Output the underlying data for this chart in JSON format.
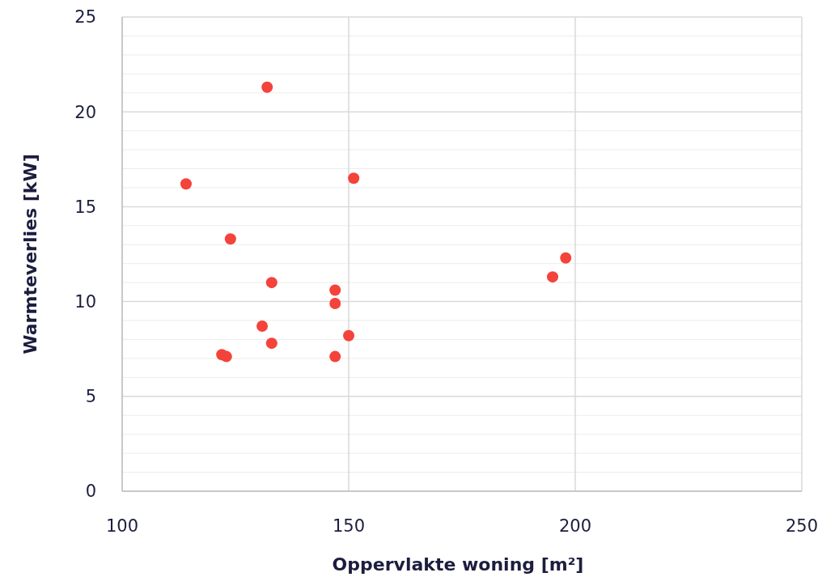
{
  "chart_data": {
    "type": "scatter",
    "xlabel": "Oppervlakte woning [m²]",
    "ylabel": "Warmteverlies [kW]",
    "x": [
      114.1,
      132.0,
      151.1,
      123.9,
      133.0,
      147.0,
      147.0,
      130.9,
      150.0,
      133.0,
      147.0,
      122.0,
      123.0,
      195.0,
      197.9
    ],
    "series": [
      {
        "color": "#f4433a",
        "values": [
          16.2,
          21.3,
          16.5,
          13.3,
          11.0,
          10.6,
          9.9,
          8.7,
          8.2,
          7.8,
          7.1,
          7.2,
          7.1,
          11.3,
          12.3
        ]
      }
    ],
    "xlim": [
      100,
      250
    ],
    "xticks": [
      100,
      150,
      200,
      250
    ],
    "ylim": [
      0,
      25
    ],
    "yticks": [
      0,
      {
        "value": 1,
        "label": null
      },
      {
        "value": 2,
        "label": null
      },
      {
        "value": 3,
        "label": null
      },
      {
        "value": 4,
        "label": null
      },
      5,
      {
        "value": 6,
        "label": null
      },
      {
        "value": 7,
        "label": null
      },
      {
        "value": 8,
        "label": null
      },
      {
        "value": 9,
        "label": null
      },
      10,
      {
        "value": 11,
        "label": null
      },
      {
        "value": 12,
        "label": null
      },
      {
        "value": 13,
        "label": null
      },
      {
        "value": 14,
        "label": null
      },
      15,
      {
        "value": 16,
        "label": null
      },
      {
        "value": 17,
        "label": null
      },
      {
        "value": 18,
        "label": null
      },
      {
        "value": 19,
        "label": null
      },
      20,
      {
        "value": 21,
        "label": null
      },
      {
        "value": 22,
        "label": null
      },
      {
        "value": 23,
        "label": null
      },
      {
        "value": 24,
        "label": null
      },
      25
    ],
    "grid": true,
    "marker": "circle"
  }
}
